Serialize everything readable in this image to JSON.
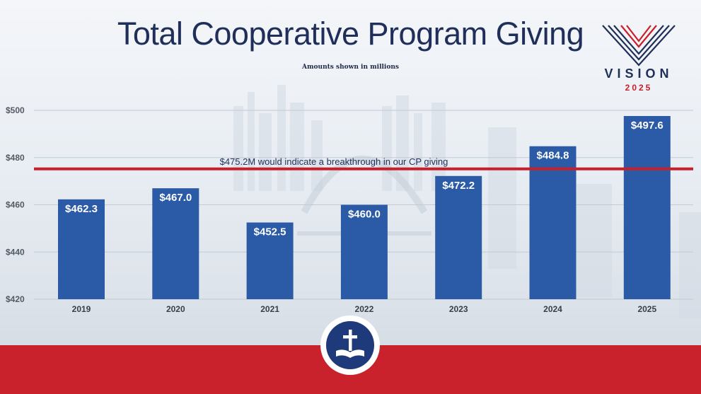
{
  "header": {
    "title": "Total Cooperative Program Giving",
    "subtitle": "Amounts shown in millions"
  },
  "logo": {
    "word": "VISION",
    "year": "2025"
  },
  "emblem_icon": "cross-book-icon",
  "colors": {
    "bar": "#2b5aa6",
    "reference_line": "#c8202a",
    "footer": "#c9222c",
    "title": "#1f2f5a"
  },
  "chart_data": {
    "type": "bar",
    "categories": [
      "2019",
      "2020",
      "2021",
      "2022",
      "2023",
      "2024",
      "2025"
    ],
    "values": [
      462.3,
      467.0,
      452.5,
      460.0,
      472.2,
      484.8,
      497.6
    ],
    "value_labels": [
      "$462.3",
      "$467.0",
      "$452.5",
      "$460.0",
      "$472.2",
      "$484.8",
      "$497.6"
    ],
    "title": "Total Cooperative Program Giving",
    "subtitle": "Amounts shown in millions",
    "ylim": [
      420,
      500
    ],
    "yticks": [
      500,
      480,
      460,
      440,
      420
    ],
    "ytick_labels": [
      "$500",
      "$480",
      "$460",
      "$440",
      "$420"
    ],
    "grid": true,
    "reference_line": {
      "value": 475.2,
      "label": "$475.2M would indicate a breakthrough in our CP giving"
    }
  }
}
